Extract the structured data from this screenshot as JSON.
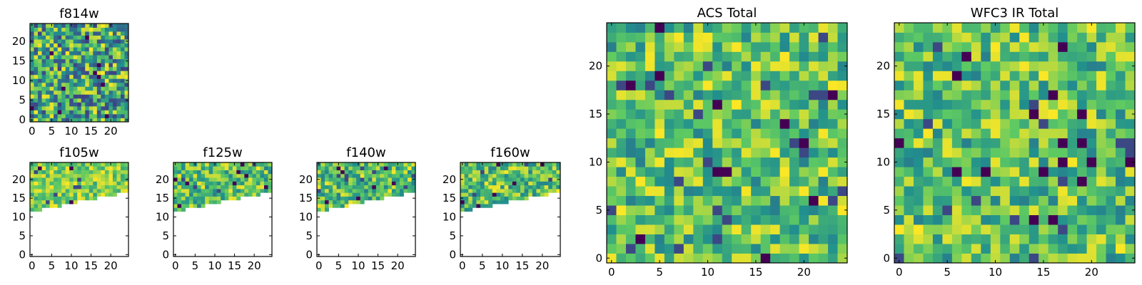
{
  "figure": {
    "palette": [
      "#440154",
      "#3b528b",
      "#21908d",
      "#5dc963",
      "#fde725"
    ],
    "background": "#ffffff"
  },
  "chart_data": [
    {
      "type": "heatmap",
      "title": "f814w",
      "grid": false,
      "xlim": [
        0,
        24
      ],
      "ylim": [
        0,
        24
      ],
      "x_ticks": [
        0,
        5,
        10,
        15,
        20
      ],
      "y_ticks": [
        0,
        5,
        10,
        15,
        20
      ],
      "colormap": "viridis",
      "description_of_values": "noisy normalized pixel intensities covering all 25x25 pixels",
      "coverage_rows": [
        0,
        24
      ]
    },
    {
      "type": "heatmap",
      "title": "f105w",
      "grid": false,
      "xlim": [
        0,
        24
      ],
      "ylim": [
        0,
        24
      ],
      "x_ticks": [
        0,
        5,
        10,
        15,
        20
      ],
      "y_ticks": [
        0,
        5,
        10,
        15,
        20
      ],
      "colormap": "viridis",
      "coverage_rows": [
        12,
        24
      ]
    },
    {
      "type": "heatmap",
      "title": "f125w",
      "grid": false,
      "xlim": [
        0,
        24
      ],
      "ylim": [
        0,
        24
      ],
      "x_ticks": [
        0,
        5,
        10,
        15,
        20
      ],
      "y_ticks": [
        0,
        5,
        10,
        15,
        20
      ],
      "colormap": "viridis",
      "coverage_rows": [
        12,
        24
      ]
    },
    {
      "type": "heatmap",
      "title": "f140w",
      "grid": false,
      "xlim": [
        0,
        24
      ],
      "ylim": [
        0,
        24
      ],
      "x_ticks": [
        0,
        5,
        10,
        15,
        20
      ],
      "y_ticks": [
        0,
        5,
        10,
        15,
        20
      ],
      "colormap": "viridis",
      "coverage_rows": [
        12,
        24
      ]
    },
    {
      "type": "heatmap",
      "title": "f160w",
      "grid": false,
      "xlim": [
        0,
        24
      ],
      "ylim": [
        0,
        24
      ],
      "x_ticks": [
        0,
        5,
        10,
        15,
        20
      ],
      "y_ticks": [
        0,
        5,
        10,
        15,
        20
      ],
      "colormap": "viridis",
      "coverage_rows": [
        12,
        24
      ]
    },
    {
      "type": "heatmap",
      "title": "ACS Total",
      "grid": false,
      "xlim": [
        0,
        24
      ],
      "ylim": [
        0,
        24
      ],
      "x_ticks": [
        0,
        5,
        10,
        15,
        20
      ],
      "y_ticks": [
        0,
        5,
        10,
        15,
        20
      ],
      "colormap": "viridis",
      "coverage_rows": [
        0,
        24
      ]
    },
    {
      "type": "heatmap",
      "title": "WFC3 IR Total",
      "grid": false,
      "xlim": [
        0,
        24
      ],
      "ylim": [
        0,
        24
      ],
      "x_ticks": [
        0,
        5,
        10,
        15,
        20
      ],
      "y_ticks": [
        0,
        5,
        10,
        15,
        20
      ],
      "colormap": "viridis",
      "coverage_rows": [
        0,
        24
      ]
    }
  ]
}
